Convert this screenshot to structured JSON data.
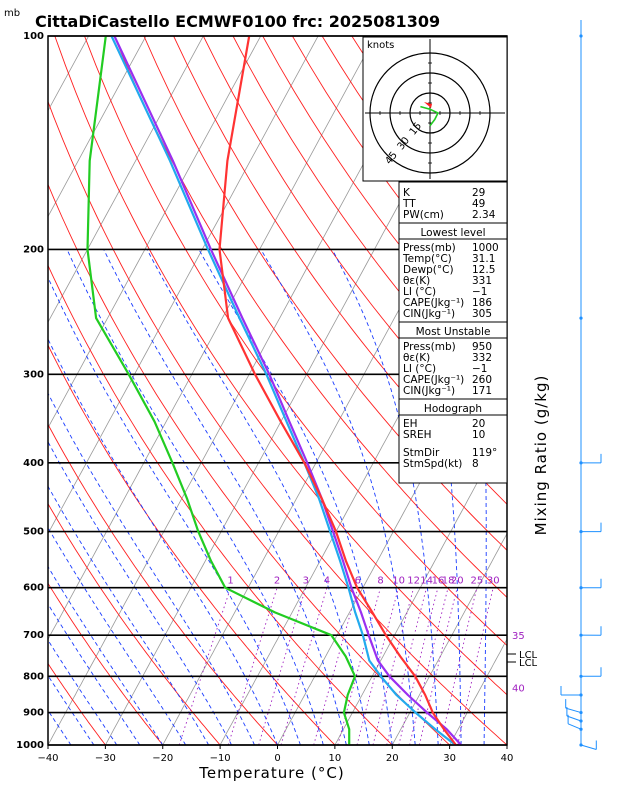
{
  "title": "CittaDiCastello ECMWF0100 frc: 2025081309",
  "pressure_unit": "mb",
  "x_axis_title": "Temperature (°C)",
  "right_axis_title": "Mixing Ratio (g/kg)",
  "colors": {
    "temperature": "#ff3333",
    "dewpoint": "#22cc22",
    "parcel": "#22aaee",
    "virtual": "#9a30f0",
    "dry_adiabat": "#ff2020",
    "moist_adiabat": "#1a3cff",
    "mixing_ratio": "#a020c0",
    "isotherm": "#999999"
  },
  "hodograph": {
    "unit_label": "knots",
    "ring_labels": [
      "15",
      "30",
      "45"
    ]
  },
  "lcl_label": "LCL",
  "indices": {
    "top": [
      {
        "label": "K",
        "value": "29"
      },
      {
        "label": "TT",
        "value": "49"
      },
      {
        "label": "PW(cm)",
        "value": "2.34"
      }
    ],
    "lowest_level": {
      "heading": "Lowest level",
      "rows": [
        {
          "label": "Press(mb)",
          "value": "1000"
        },
        {
          "label": "Temp(°C)",
          "value": "31.1"
        },
        {
          "label": "Dewp(°C)",
          "value": "12.5"
        },
        {
          "label": "θε(K)",
          "value": "331"
        },
        {
          "label": "LI (°C)",
          "value": "−1"
        },
        {
          "label": "CAPE(Jkg⁻¹)",
          "value": "186"
        },
        {
          "label": "CIN(Jkg⁻¹)",
          "value": "305"
        }
      ]
    },
    "most_unstable": {
      "heading": "Most Unstable",
      "rows": [
        {
          "label": "Press(mb)",
          "value": "950"
        },
        {
          "label": "θε(K)",
          "value": "332"
        },
        {
          "label": "LI (°C)",
          "value": "−1"
        },
        {
          "label": "CAPE(Jkg⁻¹)",
          "value": "260"
        },
        {
          "label": "CIN(Jkg⁻¹)",
          "value": "171"
        }
      ]
    },
    "hodograph_box": {
      "heading": "Hodograph",
      "rows": [
        {
          "label": "EH",
          "value": "20"
        },
        {
          "label": "SREH",
          "value": "10"
        },
        {
          "label": "StmDir",
          "value": "119°"
        },
        {
          "label": "StmSpd(kt)",
          "value": "8"
        }
      ]
    }
  },
  "chart_data": {
    "type": "skew-t log-p",
    "x_axis": {
      "label": "Temperature (°C)",
      "ticks": [
        -40,
        -30,
        -20,
        -10,
        0,
        10,
        20,
        30,
        40
      ],
      "range": [
        -40,
        40
      ]
    },
    "y_axis": {
      "label": "mb",
      "ticks": [
        100,
        200,
        300,
        400,
        500,
        600,
        700,
        800,
        900,
        1000
      ],
      "range": [
        1000,
        100
      ],
      "scale": "log"
    },
    "mixing_ratio_labels": [
      "1",
      "2",
      "3",
      "4",
      "6",
      "8",
      "10",
      "12",
      "14",
      "16",
      "18",
      "20",
      "25",
      "30"
    ],
    "mixing_ratio_values": [
      1,
      2,
      3,
      4,
      6,
      8,
      10,
      12,
      14,
      16,
      18,
      20,
      25,
      30
    ],
    "side_labels": [
      "35",
      "40"
    ],
    "series": [
      {
        "name": "temperature",
        "points": [
          {
            "p": 1000,
            "t": 31.1
          },
          {
            "p": 950,
            "t": 27.5
          },
          {
            "p": 900,
            "t": 24
          },
          {
            "p": 850,
            "t": 21
          },
          {
            "p": 800,
            "t": 17.5
          },
          {
            "p": 750,
            "t": 13
          },
          {
            "p": 700,
            "t": 8.5
          },
          {
            "p": 650,
            "t": 4
          },
          {
            "p": 600,
            "t": -1
          },
          {
            "p": 550,
            "t": -5.5
          },
          {
            "p": 500,
            "t": -10
          },
          {
            "p": 450,
            "t": -15.5
          },
          {
            "p": 400,
            "t": -22
          },
          {
            "p": 350,
            "t": -30
          },
          {
            "p": 300,
            "t": -39
          },
          {
            "p": 250,
            "t": -49
          },
          {
            "p": 200,
            "t": -57
          },
          {
            "p": 150,
            "t": -64
          },
          {
            "p": 100,
            "t": -72
          }
        ]
      },
      {
        "name": "dewpoint",
        "points": [
          {
            "p": 1000,
            "t": 12.5
          },
          {
            "p": 950,
            "t": 11
          },
          {
            "p": 900,
            "t": 8.5
          },
          {
            "p": 850,
            "t": 7.5
          },
          {
            "p": 800,
            "t": 7
          },
          {
            "p": 750,
            "t": 3.5
          },
          {
            "p": 700,
            "t": -1
          },
          {
            "p": 650,
            "t": -13
          },
          {
            "p": 600,
            "t": -24
          },
          {
            "p": 550,
            "t": -29
          },
          {
            "p": 500,
            "t": -34
          },
          {
            "p": 450,
            "t": -39
          },
          {
            "p": 400,
            "t": -45
          },
          {
            "p": 350,
            "t": -52
          },
          {
            "p": 300,
            "t": -61
          },
          {
            "p": 250,
            "t": -72
          },
          {
            "p": 200,
            "t": -80
          },
          {
            "p": 150,
            "t": -88
          },
          {
            "p": 100,
            "t": -97
          }
        ]
      },
      {
        "name": "parcel",
        "points": [
          {
            "p": 1000,
            "t": 31
          },
          {
            "p": 950,
            "t": 26
          },
          {
            "p": 900,
            "t": 21
          },
          {
            "p": 850,
            "t": 16
          },
          {
            "p": 800,
            "t": 11.5
          },
          {
            "p": 760,
            "t": 8
          },
          {
            "p": 700,
            "t": 4.5
          },
          {
            "p": 650,
            "t": 1
          },
          {
            "p": 600,
            "t": -2.5
          },
          {
            "p": 550,
            "t": -6.5
          },
          {
            "p": 500,
            "t": -11
          },
          {
            "p": 450,
            "t": -16
          },
          {
            "p": 400,
            "t": -22
          },
          {
            "p": 350,
            "t": -29
          },
          {
            "p": 300,
            "t": -37
          },
          {
            "p": 250,
            "t": -47
          },
          {
            "p": 200,
            "t": -59
          },
          {
            "p": 150,
            "t": -74
          },
          {
            "p": 100,
            "t": -96
          }
        ]
      },
      {
        "name": "virtual",
        "points": [
          {
            "p": 1000,
            "t": 32
          },
          {
            "p": 950,
            "t": 28
          },
          {
            "p": 900,
            "t": 23
          },
          {
            "p": 850,
            "t": 18
          },
          {
            "p": 800,
            "t": 13
          },
          {
            "p": 760,
            "t": 9.5
          },
          {
            "p": 700,
            "t": 5.5
          },
          {
            "p": 650,
            "t": 2
          },
          {
            "p": 600,
            "t": -2
          },
          {
            "p": 550,
            "t": -6
          },
          {
            "p": 500,
            "t": -10.5
          },
          {
            "p": 450,
            "t": -15.5
          },
          {
            "p": 400,
            "t": -21.5
          },
          {
            "p": 350,
            "t": -28.5
          },
          {
            "p": 300,
            "t": -36.5
          },
          {
            "p": 250,
            "t": -46.5
          },
          {
            "p": 200,
            "t": -58.5
          },
          {
            "p": 150,
            "t": -73.5
          },
          {
            "p": 100,
            "t": -95.5
          }
        ]
      }
    ],
    "hodograph_points": [
      {
        "u": 0,
        "v": -4
      },
      {
        "u": 1.5,
        "v": -2
      },
      {
        "u": 2.5,
        "v": 0
      },
      {
        "u": 0,
        "v": 1.2
      },
      {
        "u": -3,
        "v": 2
      }
    ],
    "wind_barbs": [
      {
        "p": 1000,
        "dir": 130,
        "spd": 10
      },
      {
        "p": 950,
        "dir": 320,
        "spd": 10
      },
      {
        "p": 925,
        "dir": 315,
        "spd": 10
      },
      {
        "p": 900,
        "dir": 310,
        "spd": 10
      },
      {
        "p": 850,
        "dir": 270,
        "spd": 10
      },
      {
        "p": 800,
        "dir": 90,
        "spd": 10
      },
      {
        "p": 700,
        "dir": 90,
        "spd": 10
      },
      {
        "p": 600,
        "dir": 90,
        "spd": 10
      },
      {
        "p": 500,
        "dir": 90,
        "spd": 10
      },
      {
        "p": 400,
        "dir": 90,
        "spd": 10
      },
      {
        "p": 250,
        "dir": 0,
        "spd": 15
      },
      {
        "p": 100,
        "dir": 0,
        "spd": 15
      }
    ]
  }
}
